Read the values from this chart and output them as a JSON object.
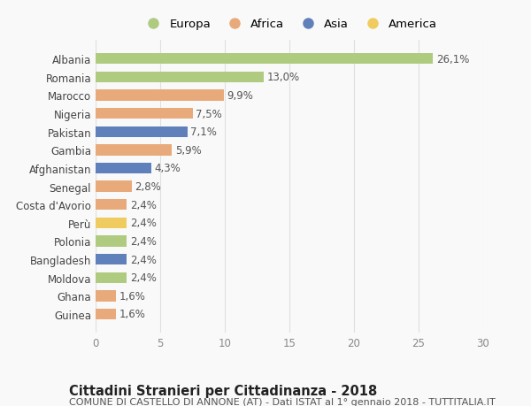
{
  "countries": [
    "Albania",
    "Romania",
    "Marocco",
    "Nigeria",
    "Pakistan",
    "Gambia",
    "Afghanistan",
    "Senegal",
    "Costa d'Avorio",
    "Perù",
    "Polonia",
    "Bangladesh",
    "Moldova",
    "Ghana",
    "Guinea"
  ],
  "values": [
    26.1,
    13.0,
    9.9,
    7.5,
    7.1,
    5.9,
    4.3,
    2.8,
    2.4,
    2.4,
    2.4,
    2.4,
    2.4,
    1.6,
    1.6
  ],
  "labels": [
    "26,1%",
    "13,0%",
    "9,9%",
    "7,5%",
    "7,1%",
    "5,9%",
    "4,3%",
    "2,8%",
    "2,4%",
    "2,4%",
    "2,4%",
    "2,4%",
    "2,4%",
    "1,6%",
    "1,6%"
  ],
  "continents": [
    "Europa",
    "Europa",
    "Africa",
    "Africa",
    "Asia",
    "Africa",
    "Asia",
    "Africa",
    "Africa",
    "America",
    "Europa",
    "Asia",
    "Europa",
    "Africa",
    "Africa"
  ],
  "colors": {
    "Europa": "#aecb80",
    "Africa": "#e8aa7a",
    "Asia": "#6080bb",
    "America": "#f0cc60"
  },
  "legend_order": [
    "Europa",
    "Africa",
    "Asia",
    "America"
  ],
  "xlim": [
    0,
    30
  ],
  "xticks": [
    0,
    5,
    10,
    15,
    20,
    25,
    30
  ],
  "title": "Cittadini Stranieri per Cittadinanza - 2018",
  "subtitle": "COMUNE DI CASTELLO DI ANNONE (AT) - Dati ISTAT al 1° gennaio 2018 - TUTTITALIA.IT",
  "background_color": "#f9f9f9",
  "grid_color": "#e0e0e0",
  "bar_height": 0.6,
  "label_fontsize": 8.5,
  "tick_fontsize": 8.5,
  "title_fontsize": 10.5,
  "subtitle_fontsize": 8,
  "legend_fontsize": 9.5
}
